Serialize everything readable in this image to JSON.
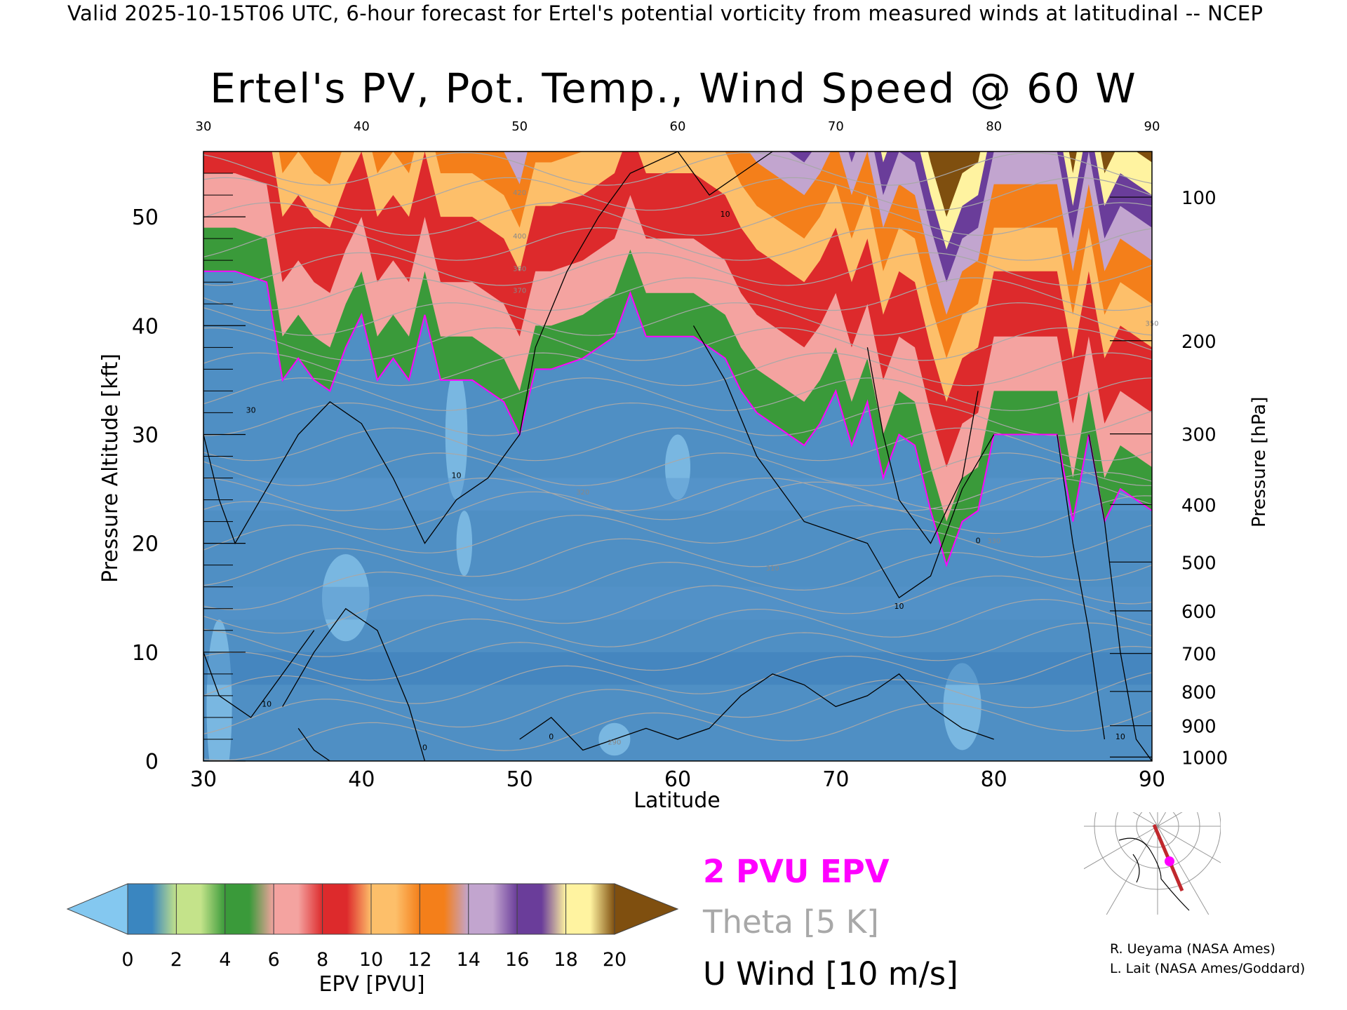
{
  "header": "Valid 2025-10-15T06 UTC, 6-hour forecast for Ertel's potential vorticity from measured winds at latitudinal -- NCEP",
  "chart_data": {
    "type": "heatmap",
    "title": "Ertel's PV, Pot. Temp., Wind Speed @ 60 W",
    "xlabel": "Latitude",
    "ylabel": "Pressure Altitude [kft]",
    "y2label": "Pressure [hPa]",
    "xlim": [
      30,
      90
    ],
    "ylim": [
      0,
      56
    ],
    "x_ticks_bottom": [
      "30",
      "40",
      "50",
      "60",
      "70",
      "80",
      "90"
    ],
    "x_ticks_top": [
      "30",
      "40",
      "50",
      "60",
      "70",
      "80",
      "90"
    ],
    "y_ticks": [
      "0",
      "10",
      "20",
      "30",
      "40",
      "50"
    ],
    "pressure_ticks": [
      "100",
      "200",
      "300",
      "400",
      "500",
      "600",
      "700",
      "800",
      "900",
      "1000"
    ],
    "pressure_tick_values_hpa": [
      100,
      200,
      300,
      400,
      500,
      600,
      700,
      800,
      900,
      1000
    ],
    "tropopause_2pvu_kft": {
      "lat": [
        30,
        32,
        34,
        35,
        36,
        37,
        38,
        39,
        40,
        41,
        42,
        43,
        44,
        45,
        46,
        47,
        48,
        49,
        50,
        51,
        52,
        54,
        55,
        56,
        57,
        58,
        60,
        61,
        62,
        63,
        64,
        65,
        66,
        67,
        68,
        69,
        70,
        71,
        72,
        73,
        74,
        75,
        76,
        77,
        78,
        79,
        80,
        81,
        82,
        83,
        84,
        85,
        86,
        87,
        88,
        89,
        90
      ],
      "kft": [
        45,
        45,
        44,
        35,
        37,
        35,
        34,
        38,
        41,
        35,
        37,
        35,
        41,
        35,
        35,
        35,
        34,
        33,
        30,
        36,
        36,
        37,
        38,
        39,
        43,
        39,
        39,
        39,
        38,
        37,
        34,
        32,
        31,
        30,
        29,
        31,
        34,
        29,
        33,
        26,
        30,
        29,
        23,
        18,
        22,
        23,
        30,
        30,
        30,
        30,
        30,
        22,
        30,
        22,
        25,
        24,
        23
      ]
    },
    "contour_labels_theta_K": [
      "290",
      "310",
      "320",
      "330",
      "350",
      "370",
      "380",
      "400",
      "420"
    ],
    "contour_labels_wind": [
      "0",
      "10",
      "30"
    ],
    "colorbar": {
      "label": "EPV [PVU]",
      "ticks": [
        "0",
        "2",
        "4",
        "6",
        "8",
        "10",
        "12",
        "14",
        "16",
        "18",
        "20"
      ],
      "values": [
        0,
        2,
        4,
        6,
        8,
        10,
        12,
        14,
        16,
        18,
        20
      ],
      "colors": [
        "#84c8f0",
        "#3a86c0",
        "#c4e38a",
        "#3a9a3a",
        "#f4a3a0",
        "#dd2a2c",
        "#fdbf6a",
        "#f47f1a",
        "#c2a5cf",
        "#6a3d9a",
        "#fff3a0",
        "#7f4f0f"
      ],
      "extend_low_color": "#84c8f0",
      "extend_high_color": "#7f4f0f"
    }
  },
  "legend": {
    "pv": "2 PVU EPV",
    "theta": "Theta [5 K]",
    "wind": "U Wind [10 m/s]",
    "pv_color": "#ff00ff",
    "theta_color": "#a8a8a8"
  },
  "credits": [
    "R. Ueyama (NASA Ames)",
    "L. Lait (NASA Ames/Goddard)"
  ],
  "inset_map": {
    "marker_color": "#ff00ff",
    "track_color": "#c0282d"
  }
}
